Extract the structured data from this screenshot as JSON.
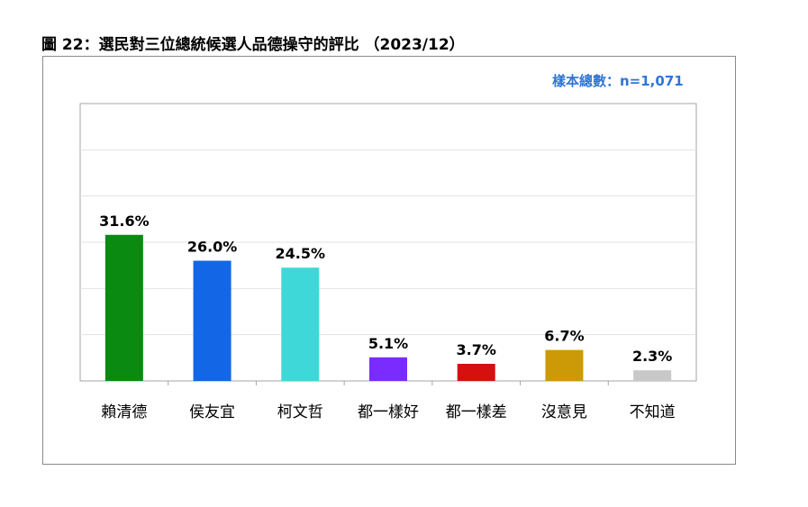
{
  "title": "圖 22：選民對三位總統候選人品德操守的評比 （2023/12）",
  "sample_note": "樣本總數：n=1,071",
  "chart_data": {
    "type": "bar",
    "title": "圖 22：選民對三位總統候選人品德操守的評比 （2023/12）",
    "categories": [
      "賴清德",
      "侯友宜",
      "柯文哲",
      "都一樣好",
      "都一樣差",
      "沒意見",
      "不知道"
    ],
    "values": [
      31.6,
      26.0,
      24.5,
      5.1,
      3.7,
      6.7,
      2.3
    ],
    "labels": [
      "31.6%",
      "26.0%",
      "24.5%",
      "5.1%",
      "3.7%",
      "6.7%",
      "2.3%"
    ],
    "colors": [
      "#0b8a12",
      "#1366e6",
      "#3ed8d8",
      "#7a2cff",
      "#d80f0f",
      "#cc9a06",
      "#c8c8c8"
    ],
    "unit": "%",
    "xlabel": "",
    "ylabel": "",
    "ylim": [
      0,
      60
    ],
    "gridlines": [
      10,
      20,
      30,
      40,
      50,
      60
    ],
    "grid": true,
    "legend": "none"
  }
}
